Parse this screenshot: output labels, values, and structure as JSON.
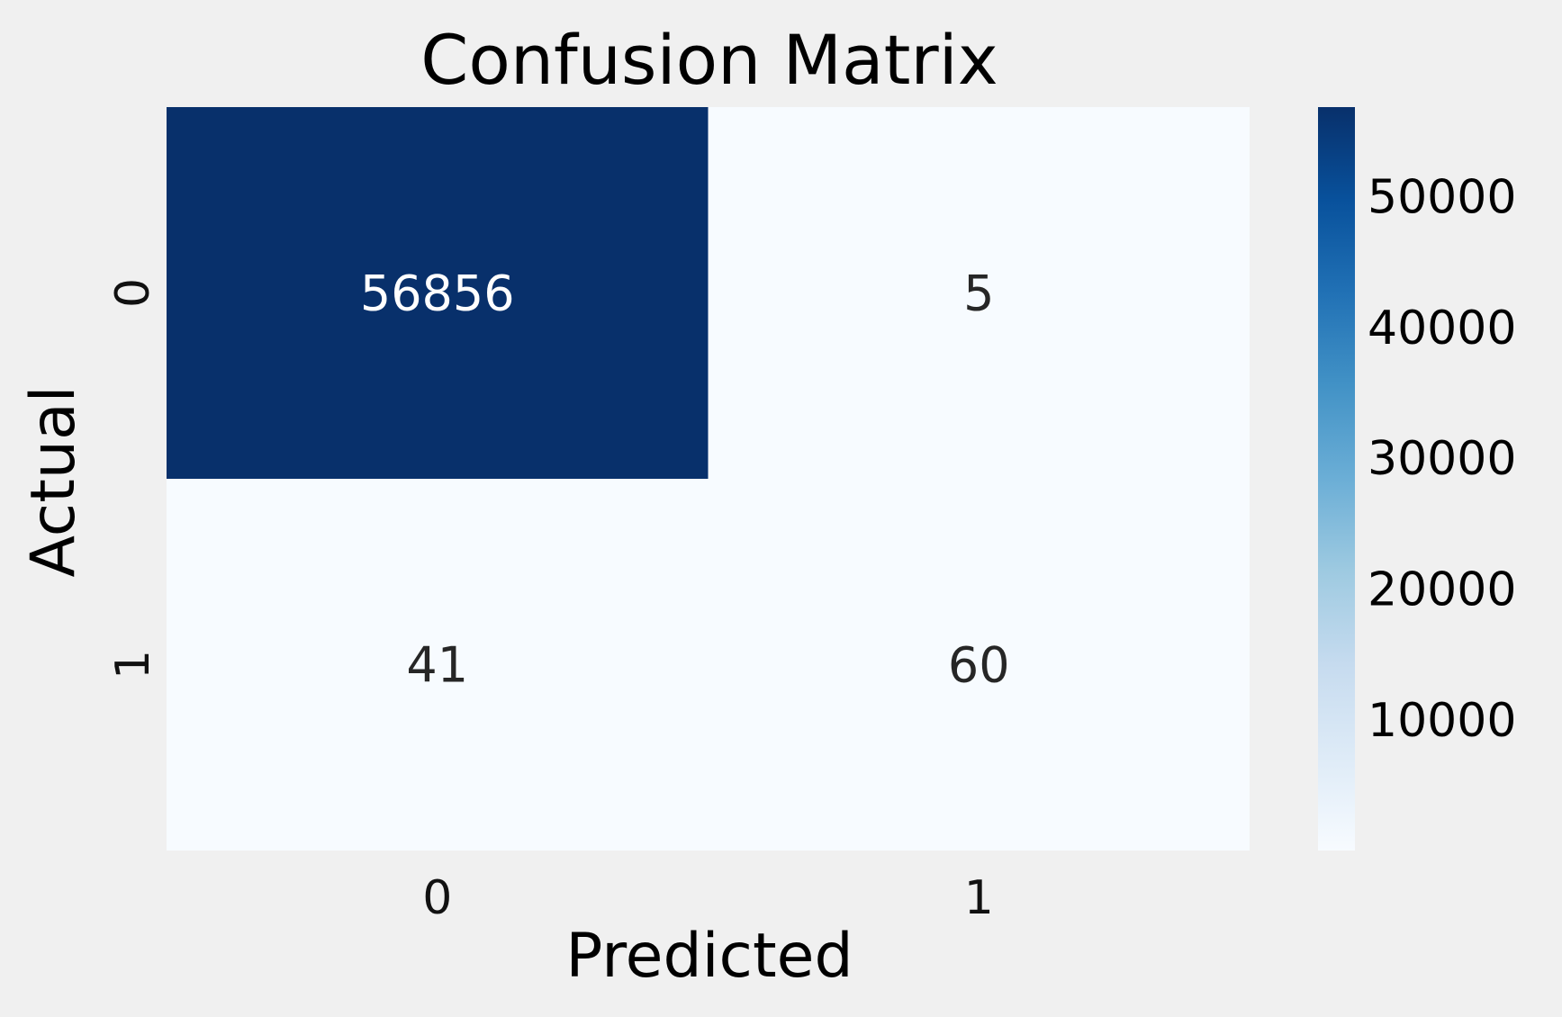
{
  "chart_data": {
    "type": "heatmap",
    "title": "Confusion Matrix",
    "xlabel": "Predicted",
    "ylabel": "Actual",
    "x_categories": [
      "0",
      "1"
    ],
    "y_categories": [
      "0",
      "1"
    ],
    "matrix": [
      [
        56856,
        5
      ],
      [
        41,
        60
      ]
    ],
    "colormap": "Blues",
    "colors": {
      "low": "#f7fbff",
      "high": "#08306b"
    },
    "colorbar": {
      "range": [
        5,
        56856
      ],
      "ticks": [
        10000,
        20000,
        30000,
        40000,
        50000
      ],
      "tick_labels": [
        "10000",
        "20000",
        "30000",
        "40000",
        "50000"
      ]
    },
    "grid": false
  }
}
